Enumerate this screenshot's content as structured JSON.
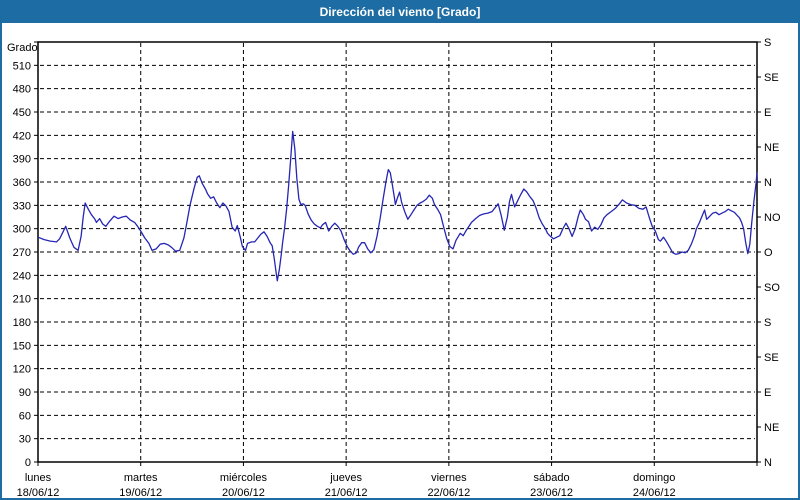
{
  "window": {
    "title": "Dirección del viento [Grado]"
  },
  "colors": {
    "titlebar": "#1d6ca3",
    "frame_border": "#1d6ca3",
    "plot_background": "#ffffff",
    "grid": "#000000",
    "axis": "#000000",
    "text": "#000000",
    "series_line": "#2626b4"
  },
  "chart_data": {
    "type": "line",
    "title": "Dirección del viento [Grado]",
    "xlabel": "",
    "ylabel": "Grado",
    "grid": "dashed",
    "legend": "none",
    "y_left": {
      "label": "Grado",
      "min": 0,
      "max": 540,
      "tick_step": 30,
      "labeled_max": 510
    },
    "y_right": {
      "tick_step_deg": 45,
      "labels_bottom_to_top": [
        "N",
        "NE",
        "E",
        "SE",
        "S",
        "SO",
        "O",
        "NO",
        "N",
        "NE",
        "E",
        "SE",
        "S"
      ]
    },
    "x_axis": {
      "unit": "days",
      "range_days": [
        0,
        7
      ],
      "days": [
        {
          "name": "lunes",
          "date": "18/06/12"
        },
        {
          "name": "martes",
          "date": "19/06/12"
        },
        {
          "name": "miércoles",
          "date": "20/06/12"
        },
        {
          "name": "jueves",
          "date": "21/06/12"
        },
        {
          "name": "viernes",
          "date": "22/06/12"
        },
        {
          "name": "sábado",
          "date": "23/06/12"
        },
        {
          "name": "domingo",
          "date": "24/06/12"
        }
      ]
    },
    "series": [
      {
        "name": "Dirección del viento",
        "color": "#2626b4",
        "points": [
          [
            0.0,
            289
          ],
          [
            0.06,
            286
          ],
          [
            0.12,
            284
          ],
          [
            0.18,
            283
          ],
          [
            0.21,
            287
          ],
          [
            0.24,
            295
          ],
          [
            0.27,
            303
          ],
          [
            0.31,
            288
          ],
          [
            0.35,
            276
          ],
          [
            0.39,
            272
          ],
          [
            0.42,
            290
          ],
          [
            0.44,
            315
          ],
          [
            0.46,
            333
          ],
          [
            0.49,
            325
          ],
          [
            0.52,
            318
          ],
          [
            0.55,
            313
          ],
          [
            0.57,
            308
          ],
          [
            0.6,
            313
          ],
          [
            0.63,
            306
          ],
          [
            0.66,
            303
          ],
          [
            0.7,
            310
          ],
          [
            0.74,
            316
          ],
          [
            0.78,
            313
          ],
          [
            0.82,
            315
          ],
          [
            0.86,
            316
          ],
          [
            0.9,
            311
          ],
          [
            0.94,
            308
          ],
          [
            0.97,
            303
          ],
          [
            1.0,
            297
          ],
          [
            1.04,
            288
          ],
          [
            1.08,
            281
          ],
          [
            1.11,
            272
          ],
          [
            1.15,
            274
          ],
          [
            1.19,
            280
          ],
          [
            1.23,
            281
          ],
          [
            1.27,
            279
          ],
          [
            1.3,
            276
          ],
          [
            1.34,
            271
          ],
          [
            1.38,
            272
          ],
          [
            1.42,
            288
          ],
          [
            1.45,
            308
          ],
          [
            1.48,
            330
          ],
          [
            1.52,
            352
          ],
          [
            1.55,
            366
          ],
          [
            1.57,
            368
          ],
          [
            1.6,
            358
          ],
          [
            1.63,
            351
          ],
          [
            1.65,
            345
          ],
          [
            1.68,
            339
          ],
          [
            1.71,
            341
          ],
          [
            1.74,
            333
          ],
          [
            1.77,
            327
          ],
          [
            1.8,
            333
          ],
          [
            1.83,
            329
          ],
          [
            1.86,
            322
          ],
          [
            1.89,
            302
          ],
          [
            1.92,
            297
          ],
          [
            1.94,
            304
          ],
          [
            1.97,
            289
          ],
          [
            1.99,
            277
          ],
          [
            2.02,
            272
          ],
          [
            2.04,
            281
          ],
          [
            2.08,
            283
          ],
          [
            2.11,
            283
          ],
          [
            2.14,
            288
          ],
          [
            2.17,
            293
          ],
          [
            2.2,
            296
          ],
          [
            2.23,
            290
          ],
          [
            2.26,
            282
          ],
          [
            2.28,
            278
          ],
          [
            2.3,
            262
          ],
          [
            2.32,
            242
          ],
          [
            2.33,
            233
          ],
          [
            2.35,
            248
          ],
          [
            2.37,
            268
          ],
          [
            2.38,
            281
          ],
          [
            2.4,
            300
          ],
          [
            2.42,
            325
          ],
          [
            2.44,
            355
          ],
          [
            2.46,
            390
          ],
          [
            2.48,
            425
          ],
          [
            2.5,
            403
          ],
          [
            2.52,
            365
          ],
          [
            2.54,
            338
          ],
          [
            2.56,
            331
          ],
          [
            2.58,
            332
          ],
          [
            2.6,
            330
          ],
          [
            2.63,
            319
          ],
          [
            2.66,
            311
          ],
          [
            2.69,
            306
          ],
          [
            2.72,
            303
          ],
          [
            2.75,
            301
          ],
          [
            2.77,
            305
          ],
          [
            2.8,
            308
          ],
          [
            2.83,
            297
          ],
          [
            2.86,
            303
          ],
          [
            2.89,
            307
          ],
          [
            2.92,
            303
          ],
          [
            2.95,
            297
          ],
          [
            2.98,
            286
          ],
          [
            3.01,
            277
          ],
          [
            3.04,
            271
          ],
          [
            3.07,
            267
          ],
          [
            3.1,
            269
          ],
          [
            3.12,
            276
          ],
          [
            3.15,
            282
          ],
          [
            3.18,
            282
          ],
          [
            3.21,
            274
          ],
          [
            3.24,
            269
          ],
          [
            3.27,
            273
          ],
          [
            3.3,
            290
          ],
          [
            3.33,
            312
          ],
          [
            3.36,
            338
          ],
          [
            3.39,
            362
          ],
          [
            3.41,
            376
          ],
          [
            3.43,
            372
          ],
          [
            3.45,
            356
          ],
          [
            3.47,
            340
          ],
          [
            3.48,
            331
          ],
          [
            3.5,
            340
          ],
          [
            3.52,
            347
          ],
          [
            3.54,
            334
          ],
          [
            3.57,
            322
          ],
          [
            3.6,
            312
          ],
          [
            3.63,
            318
          ],
          [
            3.66,
            324
          ],
          [
            3.69,
            330
          ],
          [
            3.72,
            333
          ],
          [
            3.75,
            335
          ],
          [
            3.78,
            338
          ],
          [
            3.81,
            343
          ],
          [
            3.84,
            339
          ],
          [
            3.86,
            331
          ],
          [
            3.89,
            325
          ],
          [
            3.92,
            318
          ],
          [
            3.95,
            302
          ],
          [
            3.98,
            287
          ],
          [
            4.01,
            277
          ],
          [
            4.04,
            274
          ],
          [
            4.07,
            285
          ],
          [
            4.11,
            294
          ],
          [
            4.14,
            291
          ],
          [
            4.17,
            298
          ],
          [
            4.2,
            304
          ],
          [
            4.22,
            308
          ],
          [
            4.26,
            313
          ],
          [
            4.3,
            317
          ],
          [
            4.34,
            319
          ],
          [
            4.38,
            320
          ],
          [
            4.42,
            322
          ],
          [
            4.45,
            327
          ],
          [
            4.48,
            332
          ],
          [
            4.51,
            317
          ],
          [
            4.54,
            298
          ],
          [
            4.57,
            315
          ],
          [
            4.59,
            335
          ],
          [
            4.61,
            344
          ],
          [
            4.64,
            328
          ],
          [
            4.67,
            336
          ],
          [
            4.7,
            344
          ],
          [
            4.73,
            351
          ],
          [
            4.76,
            347
          ],
          [
            4.79,
            341
          ],
          [
            4.82,
            336
          ],
          [
            4.85,
            326
          ],
          [
            4.88,
            314
          ],
          [
            4.91,
            306
          ],
          [
            4.94,
            300
          ],
          [
            4.96,
            294
          ],
          [
            4.99,
            290
          ],
          [
            5.02,
            287
          ],
          [
            5.05,
            289
          ],
          [
            5.08,
            291
          ],
          [
            5.11,
            300
          ],
          [
            5.14,
            307
          ],
          [
            5.17,
            300
          ],
          [
            5.2,
            290
          ],
          [
            5.23,
            300
          ],
          [
            5.26,
            316
          ],
          [
            5.28,
            324
          ],
          [
            5.31,
            318
          ],
          [
            5.33,
            312
          ],
          [
            5.36,
            309
          ],
          [
            5.39,
            297
          ],
          [
            5.42,
            302
          ],
          [
            5.45,
            299
          ],
          [
            5.48,
            305
          ],
          [
            5.51,
            314
          ],
          [
            5.54,
            318
          ],
          [
            5.58,
            322
          ],
          [
            5.62,
            326
          ],
          [
            5.66,
            332
          ],
          [
            5.69,
            337
          ],
          [
            5.73,
            333
          ],
          [
            5.77,
            331
          ],
          [
            5.81,
            330
          ],
          [
            5.85,
            326
          ],
          [
            5.89,
            325
          ],
          [
            5.92,
            328
          ],
          [
            5.95,
            315
          ],
          [
            5.98,
            303
          ],
          [
            6.01,
            297
          ],
          [
            6.04,
            286
          ],
          [
            6.06,
            284
          ],
          [
            6.09,
            289
          ],
          [
            6.12,
            283
          ],
          [
            6.15,
            276
          ],
          [
            6.18,
            269
          ],
          [
            6.21,
            267
          ],
          [
            6.24,
            268
          ],
          [
            6.27,
            270
          ],
          [
            6.3,
            269
          ],
          [
            6.33,
            272
          ],
          [
            6.36,
            280
          ],
          [
            6.39,
            290
          ],
          [
            6.41,
            300
          ],
          [
            6.44,
            308
          ],
          [
            6.47,
            318
          ],
          [
            6.49,
            324
          ],
          [
            6.51,
            312
          ],
          [
            6.54,
            316
          ],
          [
            6.57,
            320
          ],
          [
            6.6,
            321
          ],
          [
            6.63,
            318
          ],
          [
            6.66,
            320
          ],
          [
            6.69,
            322
          ],
          [
            6.72,
            325
          ],
          [
            6.75,
            323
          ],
          [
            6.78,
            321
          ],
          [
            6.8,
            318
          ],
          [
            6.83,
            314
          ],
          [
            6.85,
            308
          ],
          [
            6.87,
            300
          ],
          [
            6.89,
            282
          ],
          [
            6.91,
            268
          ],
          [
            6.93,
            280
          ],
          [
            6.95,
            310
          ],
          [
            6.97,
            335
          ],
          [
            6.99,
            358
          ],
          [
            7.0,
            372
          ]
        ]
      }
    ]
  }
}
